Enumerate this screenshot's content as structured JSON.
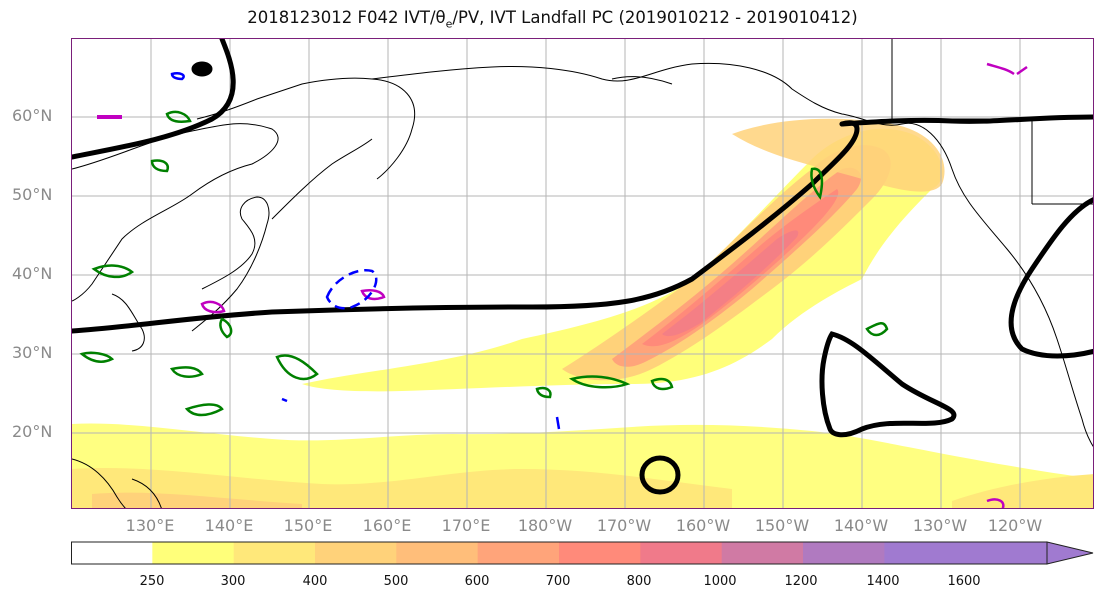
{
  "title": "2018123012 F042 IVT/θe/PV, IVT Landfall PC (2019010212 - 2019010412)",
  "map": {
    "lat_labels": [
      "60°N",
      "50°N",
      "40°N",
      "30°N",
      "20°N"
    ],
    "lon_labels": [
      "130°E",
      "140°E",
      "150°E",
      "160°E",
      "170°E",
      "180°W",
      "170°W",
      "160°W",
      "150°W",
      "140°W",
      "130°W",
      "120°W"
    ],
    "lon_range": [
      "120°E",
      "250°E"
    ],
    "lat_range": [
      "10°N",
      "70°N"
    ],
    "ivt_fill_colors": [
      "#ffff7a",
      "#ffe87a",
      "#ffd27a",
      "#ffbe7a",
      "#ffa47a",
      "#ff8a7a",
      "#f07a8a",
      "#d07aa4",
      "#b07ac0",
      "#a07ad0"
    ],
    "contour_colors": {
      "pc": "#000000",
      "theta_e": "#008000",
      "pv_pos": "#c000c0",
      "pv_neg": "#0000ff"
    }
  },
  "colorbar": {
    "ticks": [
      "250",
      "300",
      "400",
      "500",
      "600",
      "700",
      "800",
      "1000",
      "1200",
      "1400",
      "1600"
    ],
    "colors": [
      "#ffffff",
      "#ffff7a",
      "#ffe87a",
      "#ffd27a",
      "#ffbe7a",
      "#ffa47a",
      "#ff8a7a",
      "#f07a8a",
      "#d07aa4",
      "#b07ac0",
      "#a07ad0",
      "#a07ad0"
    ]
  }
}
